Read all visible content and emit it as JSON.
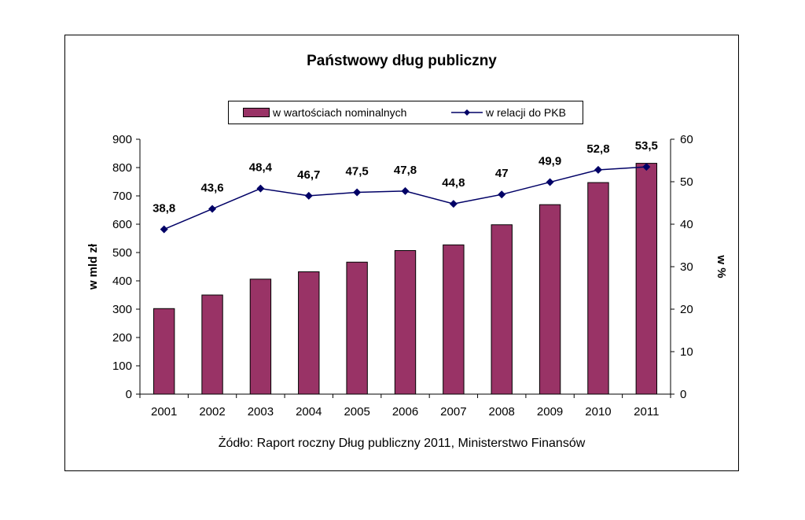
{
  "chart_data": {
    "type": "bar",
    "title": "Państwowy dług publiczny",
    "categories": [
      "2001",
      "2002",
      "2003",
      "2004",
      "2005",
      "2006",
      "2007",
      "2008",
      "2009",
      "2010",
      "2011"
    ],
    "series": [
      {
        "name": "w wartościach nominalnych",
        "type": "bar",
        "axis": "left",
        "values": [
          302,
          350,
          406,
          432,
          466,
          507,
          527,
          598,
          669,
          747,
          815
        ],
        "color": "#993366"
      },
      {
        "name": "w relacji do PKB",
        "type": "line",
        "axis": "right",
        "values": [
          38.8,
          43.6,
          48.4,
          46.7,
          47.5,
          47.8,
          44.8,
          47,
          49.9,
          52.8,
          53.5
        ],
        "labels": [
          "38,8",
          "43,6",
          "48,4",
          "46,7",
          "47,5",
          "47,8",
          "44,8",
          "47",
          "49,9",
          "52,8",
          "53,5"
        ],
        "color": "#000066"
      }
    ],
    "ylabel": "w mld zł",
    "ylim": [
      0,
      900
    ],
    "yticks": [
      0,
      100,
      200,
      300,
      400,
      500,
      600,
      700,
      800,
      900
    ],
    "y2label": "w %",
    "y2lim": [
      0,
      60
    ],
    "y2ticks": [
      0,
      10,
      20,
      30,
      40,
      50,
      60
    ],
    "grid": false,
    "legend": "top"
  },
  "source": "Żódło: Raport roczny Dług publiczny 2011,  Ministerstwo Finansów"
}
